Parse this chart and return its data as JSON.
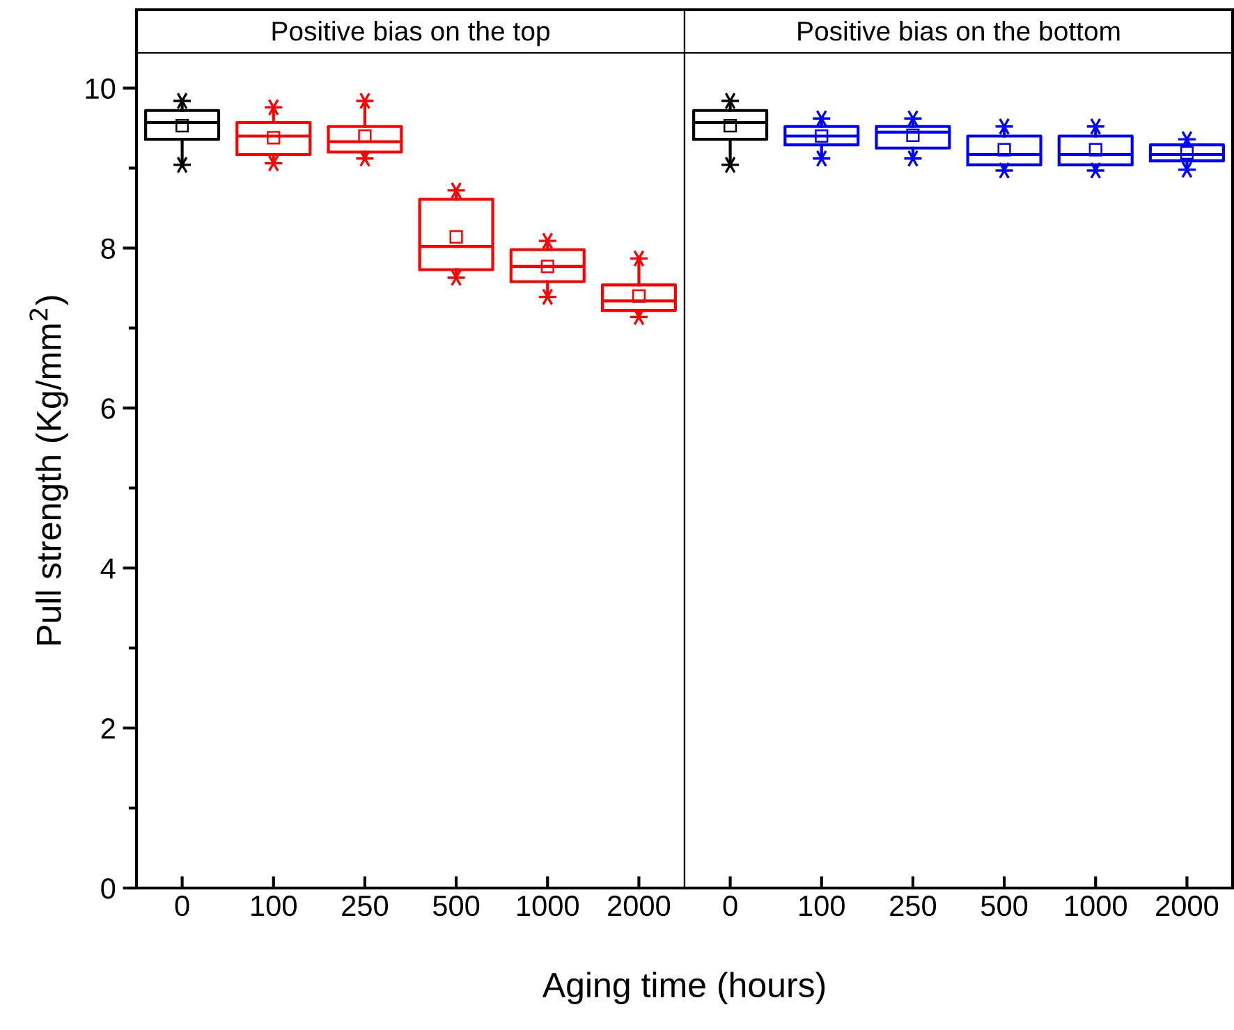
{
  "chart_data": [
    {
      "type": "box",
      "title": "Positive bias on the top",
      "xlabel": "Aging time (hours)",
      "ylabel": "Pull strength (Kg/mm$^{2}$)",
      "categories": [
        "0",
        "100",
        "250",
        "500",
        "1000",
        "2000"
      ],
      "colors": [
        "#000000",
        "#ff0000",
        "#ff0000",
        "#ff0000",
        "#ff0000",
        "#ff0000"
      ],
      "boxes": [
        {
          "low": 9.04,
          "q1": 9.36,
          "median": 9.57,
          "q3": 9.72,
          "high": 9.84,
          "mean": 9.53,
          "outliers": [
            9.04,
            9.84
          ]
        },
        {
          "low": 9.06,
          "q1": 9.17,
          "median": 9.4,
          "q3": 9.57,
          "high": 9.76,
          "mean": 9.38,
          "outliers": [
            9.06,
            9.76
          ]
        },
        {
          "low": 9.12,
          "q1": 9.2,
          "median": 9.33,
          "q3": 9.52,
          "high": 9.84,
          "mean": 9.4,
          "outliers": [
            9.12,
            9.84
          ]
        },
        {
          "low": 7.63,
          "q1": 7.73,
          "median": 8.02,
          "q3": 8.61,
          "high": 8.72,
          "mean": 8.14,
          "outliers": [
            7.63,
            8.72
          ]
        },
        {
          "low": 7.39,
          "q1": 7.58,
          "median": 7.77,
          "q3": 7.98,
          "high": 8.09,
          "mean": 7.77,
          "outliers": [
            7.39,
            8.09
          ]
        },
        {
          "low": 7.14,
          "q1": 7.22,
          "median": 7.34,
          "q3": 7.54,
          "high": 7.87,
          "mean": 7.4,
          "outliers": [
            7.14,
            7.87
          ]
        }
      ],
      "ylim": [
        0,
        10.44
      ],
      "yticks": [
        0,
        {
          "value": 1,
          "label": null
        },
        2,
        {
          "value": 3,
          "label": null
        },
        4,
        {
          "value": 5,
          "label": null
        },
        6,
        {
          "value": 7,
          "label": null
        },
        8,
        {
          "value": 9,
          "label": null
        },
        10
      ],
      "marker": "star",
      "grid": false,
      "legend": false
    },
    {
      "type": "box",
      "title": "Positive bias on the bottom",
      "categories": [
        "0",
        "100",
        "250",
        "500",
        "1000",
        "2000"
      ],
      "colors": [
        "#000000",
        "#0000ff",
        "#0000ff",
        "#0000ff",
        "#0000ff",
        "#0000ff"
      ],
      "boxes": [
        {
          "low": 9.04,
          "q1": 9.36,
          "median": 9.57,
          "q3": 9.72,
          "high": 9.84,
          "mean": 9.53,
          "outliers": [
            9.04,
            9.84
          ]
        },
        {
          "low": 9.12,
          "q1": 9.29,
          "median": 9.4,
          "q3": 9.52,
          "high": 9.62,
          "mean": 9.4,
          "outliers": [
            9.12,
            9.62
          ]
        },
        {
          "low": 9.12,
          "q1": 9.25,
          "median": 9.45,
          "q3": 9.52,
          "high": 9.62,
          "mean": 9.41,
          "outliers": [
            9.12,
            9.62
          ]
        },
        {
          "low": 8.97,
          "q1": 9.04,
          "median": 9.17,
          "q3": 9.4,
          "high": 9.52,
          "mean": 9.23,
          "outliers": [
            8.97,
            9.52
          ]
        },
        {
          "low": 8.97,
          "q1": 9.04,
          "median": 9.17,
          "q3": 9.4,
          "high": 9.52,
          "mean": 9.23,
          "outliers": [
            8.97,
            9.52
          ]
        },
        {
          "low": 8.98,
          "q1": 9.09,
          "median": 9.17,
          "q3": 9.29,
          "high": 9.36,
          "mean": 9.19,
          "outliers": [
            8.98,
            9.36
          ]
        }
      ],
      "ylim": [
        0,
        10.44
      ],
      "yticks": [
        0,
        {
          "value": 1,
          "label": null
        },
        2,
        {
          "value": 3,
          "label": null
        },
        4,
        {
          "value": 5,
          "label": null
        },
        6,
        {
          "value": 7,
          "label": null
        },
        8,
        {
          "value": 9,
          "label": null
        },
        10
      ],
      "marker": "star",
      "grid": false,
      "legend": false,
      "tick_labels": "x"
    }
  ]
}
